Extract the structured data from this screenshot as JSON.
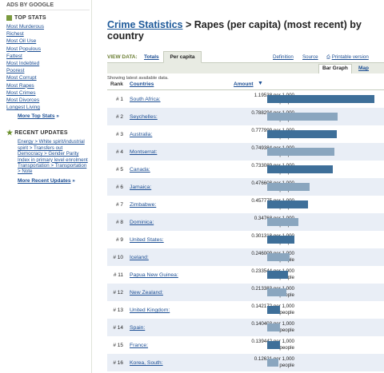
{
  "sidebar": {
    "ads_label": "ADS BY GOOGLE",
    "top_stats_heading": "TOP STATS",
    "top_stats": [
      "Most Murderous",
      "Richest",
      "Most Oil Use",
      "Most Populous",
      "Fattest",
      "Most Indebted",
      "Poorest",
      "Most Corrupt",
      "Most Rapes",
      "Most Crimes",
      "Most Divorces",
      "Longest Living"
    ],
    "more_top_stats": "More Top Stats",
    "recent_updates_heading": "RECENT UPDATES",
    "updates": [
      "Energy > White spirit/industrial",
      "spirit > Transfers out",
      "Democracy > Gender Parity",
      "Index in primary level enrolment",
      "Transportation > Transportation",
      "> Note"
    ],
    "more_recent_updates": "More Recent Updates"
  },
  "title": {
    "link": "Crime Statistics",
    "rest": " > Rapes (per capita) (most recent) by country"
  },
  "view_data": {
    "label": "VIEW DATA:",
    "totals": "Totals",
    "per_capita": "Per capita"
  },
  "links": {
    "definition": "Definition",
    "source": "Source",
    "printable": "Printable version"
  },
  "graph_tabs": {
    "bar_graph": "Bar Graph",
    "map": "Map"
  },
  "note": "Showing latest available data.",
  "headers": {
    "rank": "Rank",
    "countries": "Countries",
    "amount": "Amount"
  },
  "colors": {
    "bar": "#3e6f99",
    "bar_light": "#8aa6bf",
    "alt_row": "#e9eef6",
    "link": "#1d4f94"
  },
  "rows": [
    {
      "rank": "# 1",
      "country": "South Africa:",
      "amount": "1.19538 per 1,000",
      "unit": "people",
      "value": 1.19538,
      "light": false
    },
    {
      "rank": "# 2",
      "country": "Seychelles:",
      "amount": "0.788294 per 1,000",
      "unit": "people",
      "value": 0.788294,
      "light": true
    },
    {
      "rank": "# 3",
      "country": "Australia:",
      "amount": "0.777999 per 1,000",
      "unit": "people",
      "value": 0.777999,
      "light": false
    },
    {
      "rank": "# 4",
      "country": "Montserrat:",
      "amount": "0.749384 per 1,000",
      "unit": "people",
      "value": 0.749384,
      "light": true
    },
    {
      "rank": "# 5",
      "country": "Canada:",
      "amount": "0.733089 per 1,000",
      "unit": "people",
      "value": 0.733089,
      "light": false
    },
    {
      "rank": "# 6",
      "country": "Jamaica:",
      "amount": "0.476608 per 1,000",
      "unit": "people",
      "value": 0.476608,
      "light": true
    },
    {
      "rank": "# 7",
      "country": "Zimbabwe:",
      "amount": "0.457775 per 1,000",
      "unit": "people",
      "value": 0.457775,
      "light": false
    },
    {
      "rank": "# 8",
      "country": "Dominica:",
      "amount": "0.34768 per 1,000",
      "unit": "people",
      "value": 0.34768,
      "light": true
    },
    {
      "rank": "# 9",
      "country": "United States:",
      "amount": "0.301318 per 1,000",
      "unit": "people",
      "value": 0.301318,
      "light": false
    },
    {
      "rank": "# 10",
      "country": "Iceland:",
      "amount": "0.246009 per 1,000",
      "unit": "people",
      "value": 0.246009,
      "light": true
    },
    {
      "rank": "# 11",
      "country": "Papua New Guinea:",
      "amount": "0.233544 per 1,000",
      "unit": "people",
      "value": 0.233544,
      "light": false
    },
    {
      "rank": "# 12",
      "country": "New Zealand:",
      "amount": "0.213383 per 1,000",
      "unit": "people",
      "value": 0.213383,
      "light": true
    },
    {
      "rank": "# 13",
      "country": "United Kingdom:",
      "amount": "0.142172 per 1,000",
      "unit": "people",
      "value": 0.142172,
      "light": false
    },
    {
      "rank": "# 14",
      "country": "Spain:",
      "amount": "0.140403 per 1,000",
      "unit": "people",
      "value": 0.140403,
      "light": true
    },
    {
      "rank": "# 15",
      "country": "France:",
      "amount": "0.139442 per 1,000",
      "unit": "people",
      "value": 0.139442,
      "light": false
    },
    {
      "rank": "# 16",
      "country": "Korea, South:",
      "amount": "0.12621 per 1,000",
      "unit": "people",
      "value": 0.12621,
      "light": true
    }
  ]
}
